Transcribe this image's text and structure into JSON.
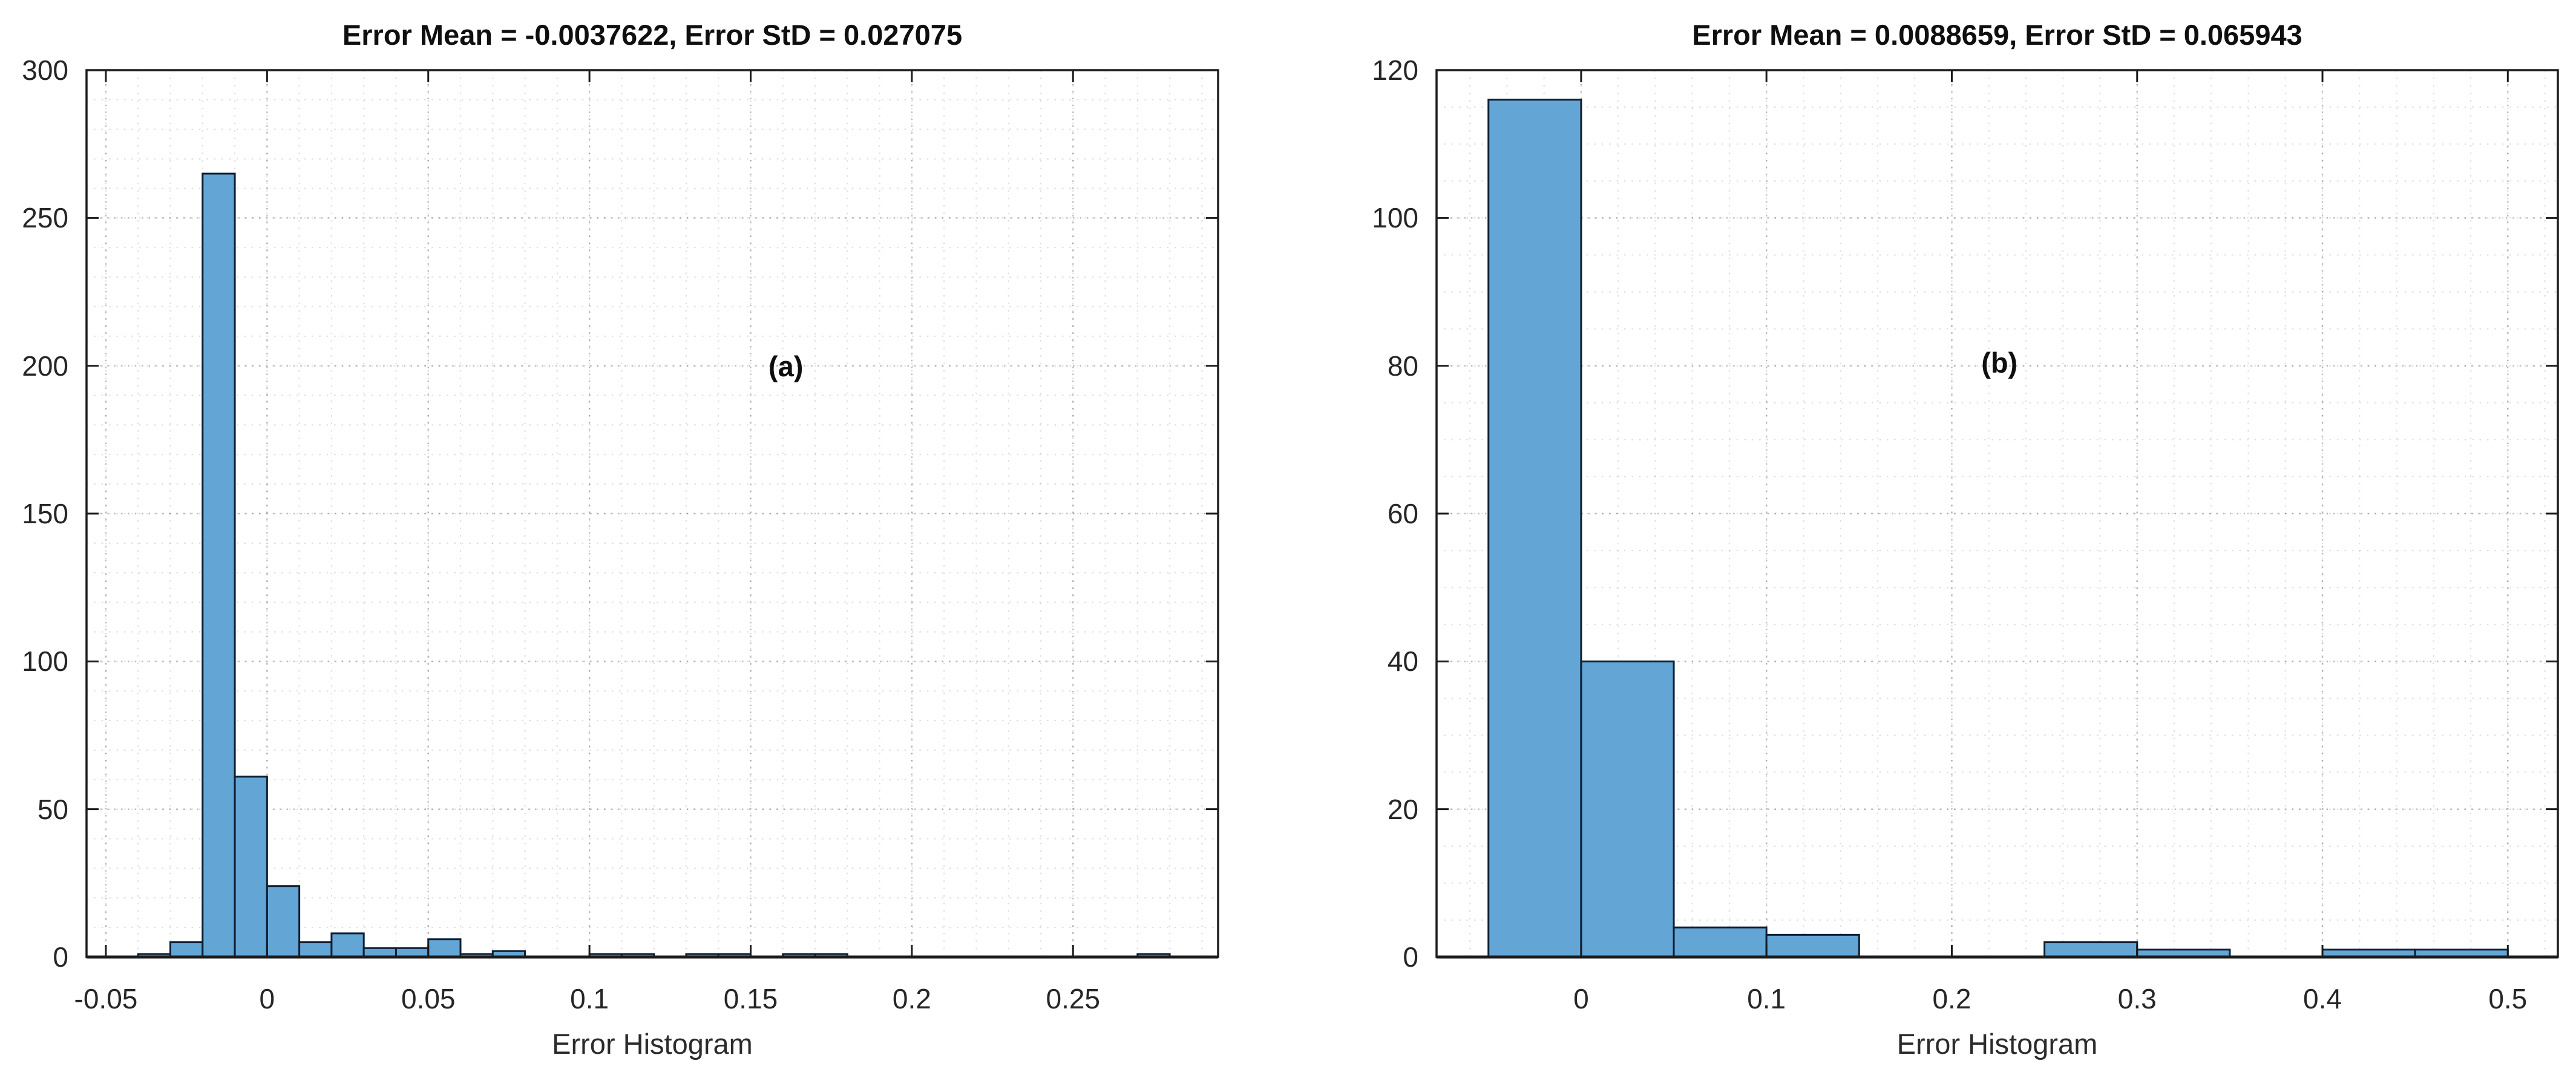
{
  "figure": {
    "background_color": "#ffffff",
    "bar_fill_color": "#63a6d6",
    "bar_edge_color": "#0d1f33",
    "axis_color": "#1c1c1c",
    "tick_label_color": "#262626",
    "grid_style": "dotted",
    "minor_grid": "on"
  },
  "chart_data": [
    {
      "type": "bar",
      "subtype": "histogram",
      "title": "Error Mean = -0.0037622, Error StD = 0.027075",
      "xlabel": "Error Histogram",
      "ylabel": "",
      "error_mean": -0.0037622,
      "error_std": 0.027075,
      "annotation": {
        "text": "(a)",
        "fx": 0.618,
        "fy": 0.334
      },
      "bin_width": 0.01,
      "bars": [
        {
          "x0": -0.04,
          "count": 1
        },
        {
          "x0": -0.03,
          "count": 5
        },
        {
          "x0": -0.02,
          "count": 265
        },
        {
          "x0": -0.01,
          "count": 61
        },
        {
          "x0": 0.0,
          "count": 24
        },
        {
          "x0": 0.01,
          "count": 5
        },
        {
          "x0": 0.02,
          "count": 8
        },
        {
          "x0": 0.03,
          "count": 3
        },
        {
          "x0": 0.04,
          "count": 3
        },
        {
          "x0": 0.05,
          "count": 6
        },
        {
          "x0": 0.06,
          "count": 1
        },
        {
          "x0": 0.07,
          "count": 2
        },
        {
          "x0": 0.1,
          "count": 1
        },
        {
          "x0": 0.11,
          "count": 1
        },
        {
          "x0": 0.13,
          "count": 1
        },
        {
          "x0": 0.14,
          "count": 1
        },
        {
          "x0": 0.16,
          "count": 1
        },
        {
          "x0": 0.17,
          "count": 1
        },
        {
          "x0": 0.27,
          "count": 1
        }
      ],
      "xlim": [
        -0.056,
        0.295
      ],
      "ylim": [
        0,
        300
      ],
      "xticks": [
        -0.05,
        0,
        0.05,
        0.1,
        0.15,
        0.2,
        0.25
      ],
      "xtick_labels": [
        "-0.05",
        "0",
        "0.05",
        "0.1",
        "0.15",
        "0.2",
        "0.25"
      ],
      "yticks": [
        0,
        50,
        100,
        150,
        200,
        250,
        300
      ],
      "ytick_labels": [
        "0",
        "50",
        "100",
        "150",
        "200",
        "250",
        "300"
      ],
      "x_minor_step": 0.01,
      "y_minor_step": 10,
      "grid": "major and minor dotted grid on"
    },
    {
      "type": "bar",
      "subtype": "histogram",
      "title": "Error Mean = 0.0088659, Error StD = 0.065943",
      "xlabel": "Error Histogram",
      "ylabel": "",
      "error_mean": 0.0088659,
      "error_std": 0.065943,
      "annotation": {
        "text": "(b)",
        "fx": 0.502,
        "fy": 0.33
      },
      "bin_width": 0.05,
      "bars": [
        {
          "x0": -0.05,
          "count": 116
        },
        {
          "x0": 0.0,
          "count": 40
        },
        {
          "x0": 0.05,
          "count": 4
        },
        {
          "x0": 0.1,
          "count": 3
        },
        {
          "x0": 0.25,
          "count": 2
        },
        {
          "x0": 0.3,
          "count": 1
        },
        {
          "x0": 0.4,
          "count": 1
        },
        {
          "x0": 0.45,
          "count": 1
        }
      ],
      "xlim": [
        -0.078,
        0.527
      ],
      "ylim": [
        0,
        120
      ],
      "xticks": [
        0,
        0.1,
        0.2,
        0.3,
        0.4,
        0.5
      ],
      "xtick_labels": [
        "0",
        "0.1",
        "0.2",
        "0.3",
        "0.4",
        "0.5"
      ],
      "yticks": [
        0,
        20,
        40,
        60,
        80,
        100,
        120
      ],
      "ytick_labels": [
        "0",
        "20",
        "40",
        "60",
        "80",
        "100",
        "120"
      ],
      "x_minor_step": 0.02,
      "y_minor_step": 5,
      "grid": "major and minor dotted grid on"
    }
  ]
}
